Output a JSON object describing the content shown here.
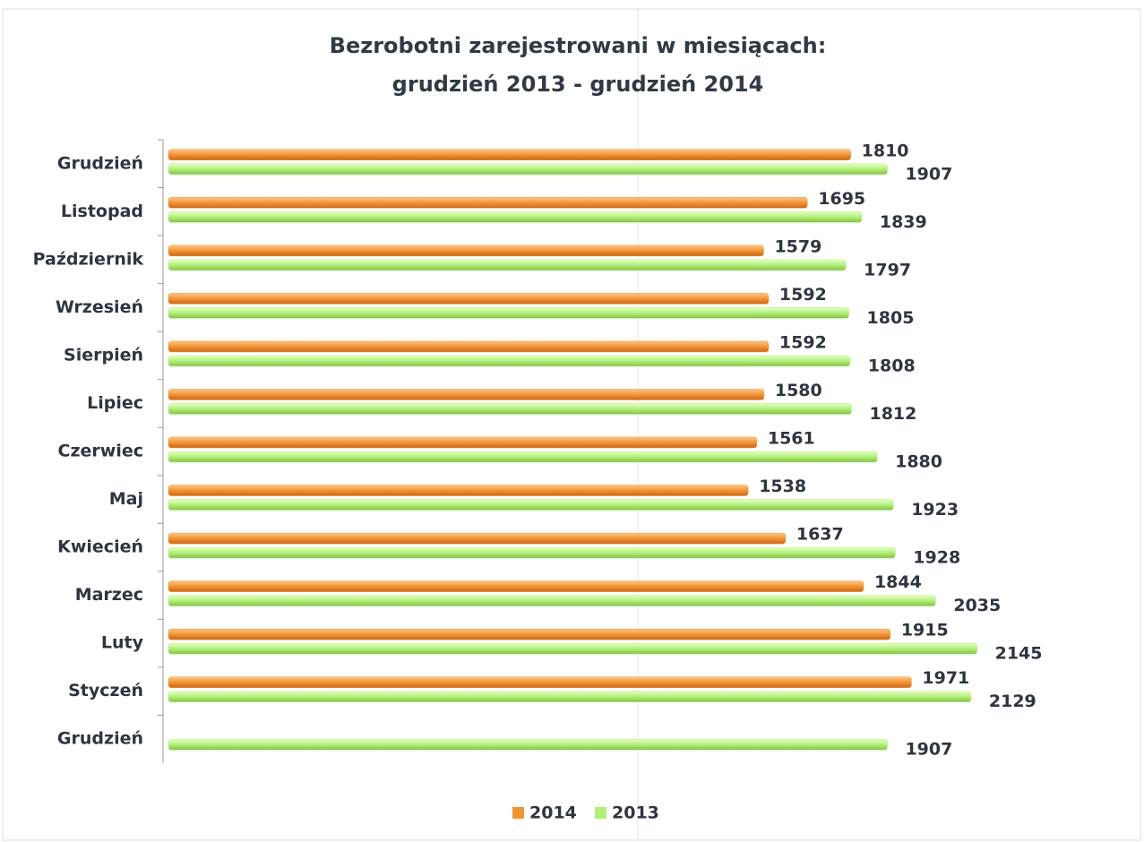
{
  "chart_data": {
    "type": "hbar",
    "title": [
      "Bezrobotni zarejestrowani w miesiącach:",
      "grudzień 2013 - grudzień 2014"
    ],
    "categories": [
      "Grudzień",
      "Listopad",
      "Październik",
      "Wrzesień",
      "Sierpień",
      "Lipiec",
      "Czerwiec",
      "Maj",
      "Kwiecień",
      "Marzec",
      "Luty",
      "Styczeń",
      "Grudzień"
    ],
    "series": [
      {
        "name": "2014",
        "color": "#f39433",
        "values": [
          1810,
          1695,
          1579,
          1592,
          1592,
          1580,
          1561,
          1538,
          1637,
          1844,
          1915,
          1971,
          null
        ]
      },
      {
        "name": "2013",
        "color": "#b3ef78",
        "values": [
          1907,
          1839,
          1797,
          1805,
          1808,
          1812,
          1880,
          1923,
          1928,
          2035,
          2145,
          2129,
          1907
        ]
      }
    ],
    "xlim": [
      0,
      2500
    ],
    "legend": "bottom"
  }
}
